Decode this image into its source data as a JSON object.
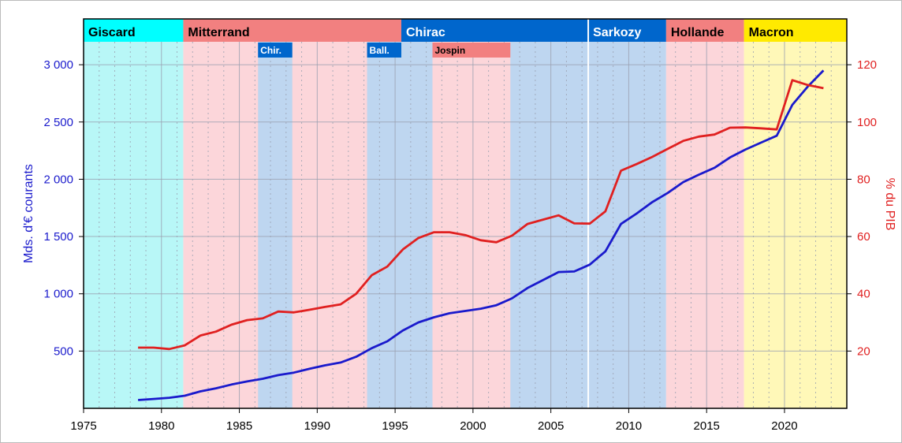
{
  "chart_data": {
    "type": "line",
    "title": "",
    "xlabel": "",
    "ylabel_left": "Mds. d'€ courants",
    "ylabel_right": "% du PIB",
    "xlim": [
      1975,
      2024
    ],
    "ylim_left": [
      0,
      3400
    ],
    "ylim_right": [
      0,
      136
    ],
    "x_ticks": [
      "1975",
      "1980",
      "1985",
      "1990",
      "1995",
      "2000",
      "2005",
      "2010",
      "2015",
      "2020"
    ],
    "y_left_ticks": [
      {
        "value": 500,
        "label": "500"
      },
      {
        "value": 1000,
        "label": "1 000"
      },
      {
        "value": 1500,
        "label": "1 500"
      },
      {
        "value": 2000,
        "label": "2 000"
      },
      {
        "value": 2500,
        "label": "2 500"
      },
      {
        "value": 3000,
        "label": "3 000"
      }
    ],
    "y_right_ticks": [
      {
        "value": 20,
        "label": "20"
      },
      {
        "value": 40,
        "label": "40"
      },
      {
        "value": 60,
        "label": "60"
      },
      {
        "value": 80,
        "label": "80"
      },
      {
        "value": 100,
        "label": "100"
      },
      {
        "value": 120,
        "label": "120"
      }
    ],
    "grid": true,
    "series": [
      {
        "name": "",
        "axis": "left",
        "color": "#1a1acc",
        "x": [
          1978.5,
          1979.5,
          1980.5,
          1981.5,
          1982.5,
          1983.5,
          1984.5,
          1985.5,
          1986.5,
          1987.5,
          1988.5,
          1989.5,
          1990.5,
          1991.5,
          1992.5,
          1993.5,
          1994.5,
          1995.5,
          1996.5,
          1997.5,
          1998.5,
          1999.5,
          2000.5,
          2001.5,
          2002.5,
          2003.5,
          2004.5,
          2005.5,
          2006.5,
          2007.5,
          2008.5,
          2009.5,
          2010.5,
          2011.5,
          2012.5,
          2013.5,
          2014.5,
          2015.5,
          2016.5,
          2017.5,
          2018.5,
          2019.5,
          2020.5,
          2021.5,
          2022.5
        ],
        "values": [
          72,
          82,
          92,
          110,
          148,
          175,
          208,
          235,
          258,
          290,
          312,
          345,
          375,
          400,
          450,
          525,
          585,
          680,
          750,
          795,
          830,
          850,
          870,
          900,
          960,
          1050,
          1120,
          1190,
          1195,
          1255,
          1370,
          1610,
          1700,
          1800,
          1880,
          1975,
          2040,
          2100,
          2190,
          2260,
          2320,
          2380,
          2650,
          2810,
          2950
        ]
      },
      {
        "name": "",
        "axis": "right",
        "color": "#e02020",
        "x": [
          1978.5,
          1979.5,
          1980.5,
          1981.5,
          1982.5,
          1983.5,
          1984.5,
          1985.5,
          1986.5,
          1987.5,
          1988.5,
          1989.5,
          1990.5,
          1991.5,
          1992.5,
          1993.5,
          1994.5,
          1995.5,
          1996.5,
          1997.5,
          1998.5,
          1999.5,
          2000.5,
          2001.5,
          2002.5,
          2003.5,
          2004.5,
          2005.5,
          2006.5,
          2007.5,
          2008.5,
          2009.5,
          2010.5,
          2011.5,
          2012.5,
          2013.5,
          2014.5,
          2015.5,
          2016.5,
          2017.5,
          2018.5,
          2019.5,
          2020.5,
          2021.5,
          2022.5
        ],
        "values": [
          21.2,
          21.2,
          20.7,
          22.0,
          25.4,
          26.8,
          29.2,
          30.8,
          31.4,
          33.8,
          33.5,
          34.4,
          35.4,
          36.3,
          40.0,
          46.5,
          49.5,
          55.5,
          59.5,
          61.5,
          61.5,
          60.5,
          58.7,
          58.0,
          60.3,
          64.4,
          65.9,
          67.4,
          64.6,
          64.5,
          68.8,
          83.0,
          85.3,
          87.8,
          90.6,
          93.4,
          94.9,
          95.6,
          98.0,
          98.1,
          97.8,
          97.4,
          114.6,
          112.9,
          111.8
        ]
      }
    ],
    "presidents": [
      {
        "label": "Giscard",
        "start": 1975,
        "end": 1981.4,
        "band_color": "#00ffff",
        "bg_color": "#b8f7f7",
        "text_color": "#000000"
      },
      {
        "label": "Mitterrand",
        "start": 1981.4,
        "end": 1995.4,
        "band_color": "#f28080",
        "bg_color": "#fcd6da",
        "text_color": "#000000"
      },
      {
        "label": "Chirac",
        "start": 1995.4,
        "end": 2007.4,
        "band_color": "#0066cc",
        "bg_color": "#bed6f0",
        "text_color": "#ffffff"
      },
      {
        "label": "Sarkozy",
        "start": 2007.4,
        "end": 2012.4,
        "band_color": "#0066cc",
        "bg_color": "#bed6f0",
        "text_color": "#ffffff"
      },
      {
        "label": "Hollande",
        "start": 2012.4,
        "end": 2017.4,
        "band_color": "#f28080",
        "bg_color": "#fcd6da",
        "text_color": "#000000"
      },
      {
        "label": "Macron",
        "start": 2017.4,
        "end": 2024,
        "band_color": "#ffea00",
        "bg_color": "#fff8b8",
        "text_color": "#000000"
      }
    ],
    "cohabitations": [
      {
        "label": "Chir.",
        "start": 1986.2,
        "end": 1988.4,
        "band_color": "#0066cc",
        "bg_color": "#bed6f0",
        "text_color": "#ffffff"
      },
      {
        "label": "Ball.",
        "start": 1993.2,
        "end": 1995.4,
        "band_color": "#0066cc",
        "bg_color": "#bed6f0",
        "text_color": "#ffffff"
      },
      {
        "label": "Jospin",
        "start": 1997.4,
        "end": 2002.4,
        "band_color": "#f28080",
        "bg_color": "#fcd6da",
        "text_color": "#000000"
      }
    ]
  }
}
